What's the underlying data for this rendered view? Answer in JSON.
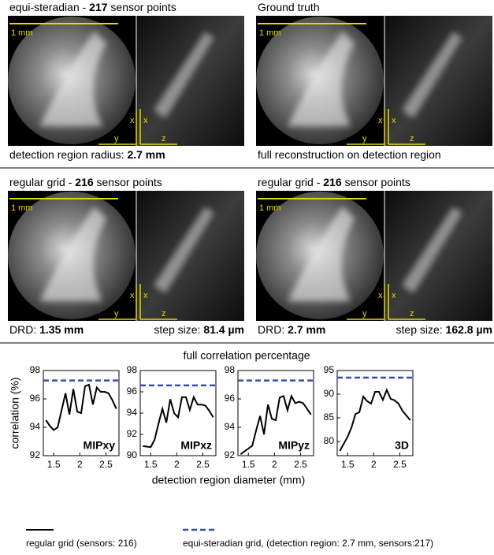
{
  "image_labels": {
    "scale": "1 mm",
    "x": "x",
    "y": "y",
    "z": "z"
  },
  "panels": [
    {
      "title": [
        "equi-steradian - ",
        "217",
        " sensor points"
      ],
      "caption": [
        "detection region radius: ",
        "2.7 mm"
      ]
    },
    {
      "title": [
        "Ground truth"
      ],
      "caption": [
        "full reconstruction on detection region"
      ]
    },
    {
      "title": [
        "regular grid - ",
        "216",
        " sensor points"
      ],
      "caption": [
        "DRD: ",
        "1.35 mm"
      ],
      "caption_right": [
        "step size: ",
        "81.4 µm"
      ]
    },
    {
      "title": [
        "regular grid - ",
        "216",
        " sensor points"
      ],
      "caption": [
        "DRD: ",
        "2.7 mm"
      ],
      "caption_right": [
        "step size: ",
        "162.8 µm"
      ]
    }
  ],
  "chart_data": {
    "type": "line",
    "title": "full correlation percentage",
    "x_label": "detection region diameter (mm)",
    "y_label": "correlation (%)",
    "x": [
      1.35,
      1.425,
      1.5,
      1.575,
      1.65,
      1.725,
      1.8,
      1.875,
      1.95,
      2.025,
      2.1,
      2.175,
      2.25,
      2.325,
      2.4,
      2.475,
      2.55,
      2.625,
      2.7
    ],
    "xlim": [
      1.3,
      2.75
    ],
    "xticks": [
      1.5,
      2,
      2.5
    ],
    "legend": [
      {
        "name": "regular grid (sensors: 216)",
        "color": "#000000"
      },
      {
        "name": "equi-steradian grid, (detection region: 2.7 mm, sensors:217)",
        "color": "#2f4fa8"
      }
    ],
    "charts": [
      {
        "label": "MIPxy",
        "ylim": [
          92,
          98
        ],
        "yticks": [
          92,
          94,
          96,
          98
        ],
        "reference": 97.3,
        "values": [
          94.5,
          94.1,
          93.8,
          94.0,
          95.2,
          96.4,
          94.9,
          96.7,
          95.1,
          95.0,
          96.9,
          97.0,
          95.6,
          96.8,
          96.5,
          96.5,
          96.4,
          95.9,
          95.3
        ]
      },
      {
        "label": "MIPxz",
        "ylim": [
          90,
          98
        ],
        "yticks": [
          90,
          92,
          94,
          96,
          98
        ],
        "reference": 96.6,
        "values": [
          90.9,
          90.85,
          90.8,
          91.5,
          93.0,
          94.4,
          93.1,
          95.3,
          94.0,
          93.6,
          95.5,
          95.5,
          94.3,
          95.5,
          94.8,
          94.8,
          94.7,
          94.2,
          93.6
        ]
      },
      {
        "label": "MIPyz",
        "ylim": [
          92,
          98
        ],
        "yticks": [
          92,
          94,
          96,
          98
        ],
        "reference": 97.3,
        "values": [
          92.1,
          92.3,
          92.5,
          92.7,
          93.8,
          94.8,
          93.5,
          95.6,
          94.6,
          94.5,
          96.1,
          96.2,
          95.2,
          96.2,
          95.7,
          95.8,
          95.7,
          95.3,
          94.9
        ]
      },
      {
        "label": "3D",
        "ylim": [
          77,
          95
        ],
        "yticks": [
          80,
          85,
          90,
          95
        ],
        "reference": 93.5,
        "values": [
          78,
          79.5,
          81,
          83,
          85.8,
          86.2,
          89.5,
          88.5,
          88,
          90.5,
          90.5,
          88.8,
          90.9,
          89,
          88.7,
          88,
          86.5,
          85.5,
          84.5
        ]
      }
    ]
  }
}
